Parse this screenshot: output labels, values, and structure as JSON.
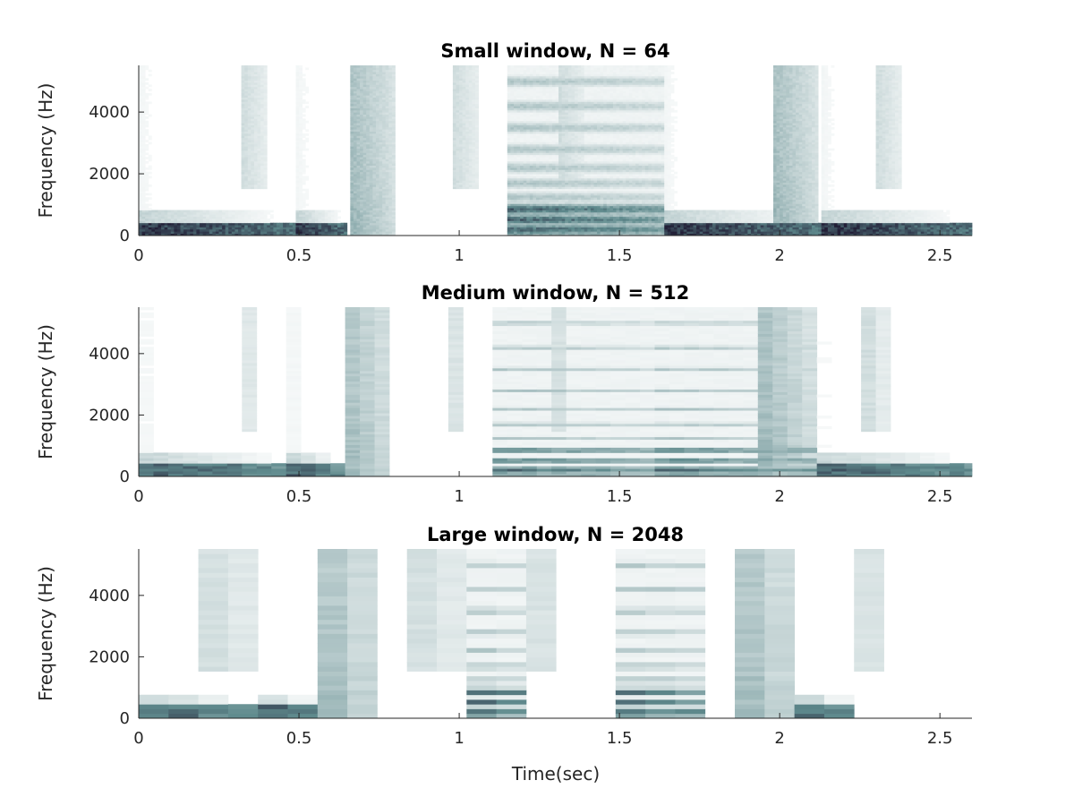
{
  "figure": {
    "xlabel": "Time(sec)",
    "colors": {
      "background": "#ffffff",
      "axis": "#262626",
      "colormap_dark": "#221f37",
      "colormap_mid": "#5f8a8d",
      "colormap_light": "#ffffff"
    }
  },
  "chart_data": [
    {
      "type": "heatmap",
      "title": "Small window, N = 64",
      "xlabel": "",
      "ylabel": "Frequency (Hz)",
      "xlim": [
        0,
        2.6
      ],
      "ylim": [
        0,
        5512
      ],
      "xticks": [
        0,
        0.5,
        1,
        1.5,
        2,
        2.5
      ],
      "xtick_labels": [
        "0",
        "0.5",
        "1",
        "1.5",
        "2",
        "2.5"
      ],
      "yticks": [
        0,
        2000,
        4000
      ],
      "ytick_labels": [
        "0",
        "2000",
        "4000"
      ],
      "grid": false,
      "colormap": "bone (reversed)",
      "events": [
        {
          "t": 0.0,
          "dur": 0.49,
          "kind": "kick"
        },
        {
          "t": 0.32,
          "dur": 0.08,
          "kind": "hat"
        },
        {
          "t": 0.49,
          "dur": 0.16,
          "kind": "kick"
        },
        {
          "t": 0.66,
          "dur": 0.14,
          "kind": "snare"
        },
        {
          "t": 0.98,
          "dur": 0.08,
          "kind": "hat"
        },
        {
          "t": 1.15,
          "dur": 0.49,
          "kind": "tone"
        },
        {
          "t": 1.31,
          "dur": 0.08,
          "kind": "hat"
        },
        {
          "t": 1.64,
          "dur": 0.49,
          "kind": "kick"
        },
        {
          "t": 1.98,
          "dur": 0.14,
          "kind": "snare"
        },
        {
          "t": 2.13,
          "dur": 0.47,
          "kind": "kick"
        },
        {
          "t": 2.3,
          "dur": 0.08,
          "kind": "hat"
        }
      ]
    },
    {
      "type": "heatmap",
      "title": "Medium window, N = 512",
      "xlabel": "",
      "ylabel": "Frequency (Hz)",
      "xlim": [
        0,
        2.6
      ],
      "ylim": [
        0,
        5512
      ],
      "xticks": [
        0,
        0.5,
        1,
        1.5,
        2,
        2.5
      ],
      "xtick_labels": [
        "0",
        "0.5",
        "1",
        "1.5",
        "2",
        "2.5"
      ],
      "yticks": [
        0,
        2000,
        4000
      ],
      "ytick_labels": [
        "0",
        "2000",
        "4000"
      ],
      "grid": false,
      "colormap": "bone (reversed)",
      "events": [
        {
          "t": 0.0,
          "dur": 0.47,
          "kind": "kick"
        },
        {
          "t": 0.31,
          "dur": 0.05,
          "kind": "hat"
        },
        {
          "t": 0.47,
          "dur": 0.16,
          "kind": "kick"
        },
        {
          "t": 0.63,
          "dur": 0.16,
          "kind": "snare"
        },
        {
          "t": 0.96,
          "dur": 0.06,
          "kind": "hat"
        },
        {
          "t": 1.12,
          "dur": 0.5,
          "kind": "tone"
        },
        {
          "t": 1.29,
          "dur": 0.06,
          "kind": "hat"
        },
        {
          "t": 1.62,
          "dur": 0.48,
          "kind": "tone"
        },
        {
          "t": 1.94,
          "dur": 0.17,
          "kind": "snare"
        },
        {
          "t": 2.1,
          "dur": 0.5,
          "kind": "kick"
        },
        {
          "t": 2.27,
          "dur": 0.06,
          "kind": "hat"
        }
      ]
    },
    {
      "type": "heatmap",
      "title": "Large window, N = 2048",
      "xlabel": "Time(sec)",
      "ylabel": "Frequency (Hz)",
      "xlim": [
        0,
        2.6
      ],
      "ylim": [
        0,
        5512
      ],
      "xticks": [
        0,
        0.5,
        1,
        1.5,
        2,
        2.5
      ],
      "xtick_labels": [
        "0",
        "0.5",
        "1",
        "1.5",
        "2",
        "2.5"
      ],
      "yticks": [
        0,
        2000,
        4000
      ],
      "ytick_labels": [
        "0",
        "2000",
        "4000"
      ],
      "grid": false,
      "colormap": "bone (reversed)",
      "events": [
        {
          "t": 0.0,
          "dur": 0.37,
          "kind": "kick"
        },
        {
          "t": 0.19,
          "dur": 0.19,
          "kind": "hat"
        },
        {
          "t": 0.37,
          "dur": 0.19,
          "kind": "kick"
        },
        {
          "t": 0.56,
          "dur": 0.19,
          "kind": "snare"
        },
        {
          "t": 0.84,
          "dur": 0.19,
          "kind": "hat"
        },
        {
          "t": 1.03,
          "dur": 0.19,
          "kind": "tone"
        },
        {
          "t": 1.22,
          "dur": 0.09,
          "kind": "hat"
        },
        {
          "t": 1.49,
          "dur": 0.28,
          "kind": "tone"
        },
        {
          "t": 1.86,
          "dur": 0.19,
          "kind": "snare"
        },
        {
          "t": 2.05,
          "dur": 0.19,
          "kind": "kick"
        },
        {
          "t": 2.24,
          "dur": 0.09,
          "kind": "hat"
        }
      ]
    }
  ]
}
